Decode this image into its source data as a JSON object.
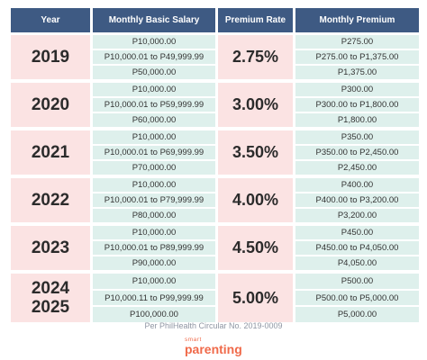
{
  "headers": {
    "year": "Year",
    "salary": "Monthly Basic Salary",
    "rate": "Premium Rate",
    "premium": "Monthly Premium"
  },
  "rows": [
    {
      "year": "2019",
      "year2": "",
      "salary": [
        "P10,000.00",
        "P10,000.01 to P49,999.99",
        "P50,000.00"
      ],
      "rate": "2.75%",
      "premium": [
        "P275.00",
        "P275.00 to P1,375.00",
        "P1,375.00"
      ]
    },
    {
      "year": "2020",
      "year2": "",
      "salary": [
        "P10,000.00",
        "P10,000.01 to P59,999.99",
        "P60,000.00"
      ],
      "rate": "3.00%",
      "premium": [
        "P300.00",
        "P300.00 to P1,800.00",
        "P1,800.00"
      ]
    },
    {
      "year": "2021",
      "year2": "",
      "salary": [
        "P10,000.00",
        "P10,000.01 to P69,999.99",
        "P70,000.00"
      ],
      "rate": "3.50%",
      "premium": [
        "P350.00",
        "P350.00 to P2,450.00",
        "P2,450.00"
      ]
    },
    {
      "year": "2022",
      "year2": "",
      "salary": [
        "P10,000.00",
        "P10,000.01 to P79,999.99",
        "P80,000.00"
      ],
      "rate": "4.00%",
      "premium": [
        "P400.00",
        "P400.00 to P3,200.00",
        "P3,200.00"
      ]
    },
    {
      "year": "2023",
      "year2": "",
      "salary": [
        "P10,000.00",
        "P10,000.01 to P89,999.99",
        "P90,000.00"
      ],
      "rate": "4.50%",
      "premium": [
        "P450.00",
        "P450.00 to P4,050.00",
        "P4,050.00"
      ]
    },
    {
      "year": "2024",
      "year2": "2025",
      "salary": [
        "P10,000.00",
        "P10,000.11 to P99,999.99",
        "P100,000.00"
      ],
      "rate": "5.00%",
      "premium": [
        "P500.00",
        "P500.00 to P5,000.00",
        "P5,000.00"
      ]
    }
  ],
  "footnote": "Per PhilHealth Circular No. 2019-0009",
  "brand": {
    "top": "smart",
    "bottom": "parenting"
  },
  "colors": {
    "header_bg": "#3e5a83",
    "year_rate_bg": "#fbe3e3",
    "cell_bg": "#def0ec",
    "brand": "#f06a4a"
  }
}
